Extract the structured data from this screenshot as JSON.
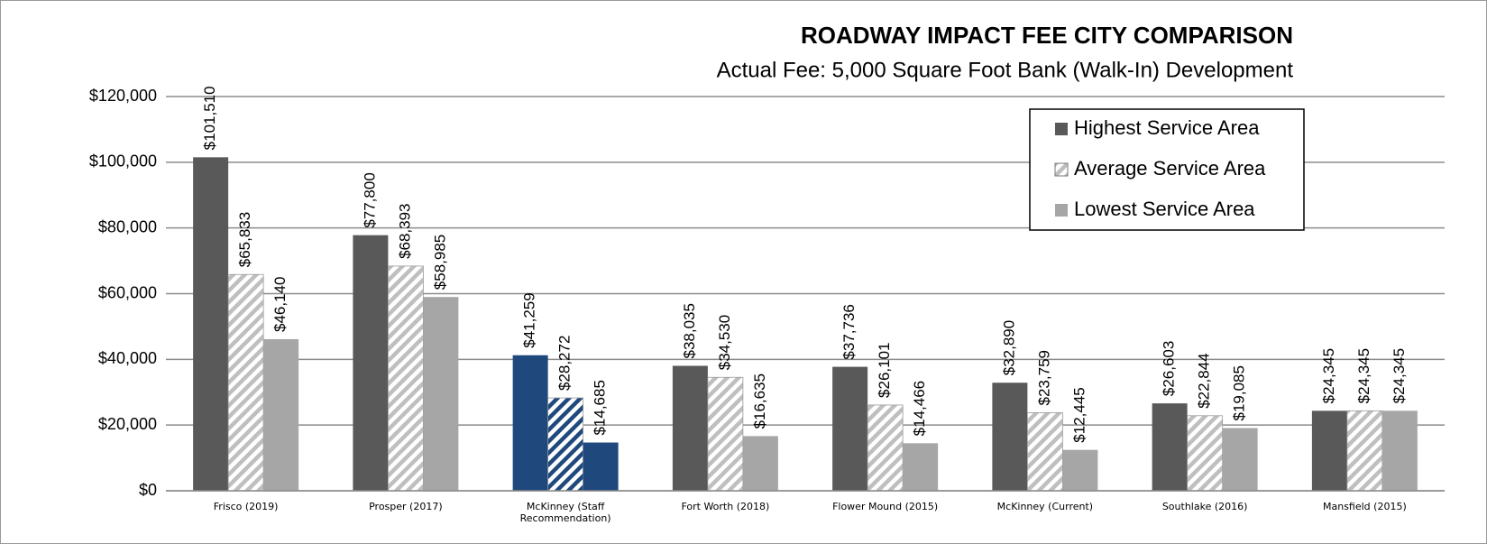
{
  "chart_data": {
    "type": "bar",
    "title": "ROADWAY IMPACT FEE CITY COMPARISON",
    "subtitle": "Actual Fee: 5,000 Square Foot Bank (Walk-In) Development",
    "categories": [
      "Frisco (2019)",
      "Prosper (2017)",
      "McKinney (Staff Recommendation)",
      "Fort Worth (2018)",
      "Flower Mound (2015)",
      "McKinney (Current)",
      "Southlake (2016)",
      "Mansfield (2015)"
    ],
    "series": [
      {
        "name": "Highest Service Area",
        "color": "#595959",
        "pattern": "solid",
        "point_colors": [
          "#595959",
          "#595959",
          "#1f497d",
          "#595959",
          "#595959",
          "#595959",
          "#595959",
          "#595959"
        ],
        "values": [
          101510,
          77800,
          41259,
          38035,
          37736,
          32890,
          26603,
          24345
        ],
        "value_labels": [
          "$101,510",
          "$77,800",
          "$41,259",
          "$38,035",
          "$37,736",
          "$32,890",
          "$26,603",
          "$24,345"
        ]
      },
      {
        "name": "Average Service Area",
        "color": "#bfbfbf",
        "pattern": "hatch",
        "point_colors": [
          "#bfbfbf",
          "#bfbfbf",
          "#1f497d",
          "#bfbfbf",
          "#bfbfbf",
          "#bfbfbf",
          "#bfbfbf",
          "#bfbfbf"
        ],
        "values": [
          65833,
          68393,
          28272,
          34530,
          26101,
          23759,
          22844,
          24345
        ],
        "value_labels": [
          "$65,833",
          "$68,393",
          "$28,272",
          "$34,530",
          "$26,101",
          "$23,759",
          "$22,844",
          "$24,345"
        ]
      },
      {
        "name": "Lowest Service Area",
        "color": "#a6a6a6",
        "pattern": "solid",
        "point_colors": [
          "#a6a6a6",
          "#a6a6a6",
          "#1f497d",
          "#a6a6a6",
          "#a6a6a6",
          "#a6a6a6",
          "#a6a6a6",
          "#a6a6a6"
        ],
        "values": [
          46140,
          58985,
          14685,
          16635,
          14466,
          12445,
          19085,
          24345
        ],
        "value_labels": [
          "$46,140",
          "$58,985",
          "$14,685",
          "$16,635",
          "$14,466",
          "$12,445",
          "$19,085",
          "$24,345"
        ]
      }
    ],
    "ylim": [
      0,
      120000
    ],
    "yticks": [
      {
        "value": 0,
        "label": "$0"
      },
      {
        "value": 20000,
        "label": "$20,000"
      },
      {
        "value": 40000,
        "label": "$40,000"
      },
      {
        "value": 60000,
        "label": "$60,000"
      },
      {
        "value": 80000,
        "label": "$80,000"
      },
      {
        "value": 100000,
        "label": "$100,000"
      },
      {
        "value": 120000,
        "label": "$120,000"
      }
    ],
    "grid": true,
    "legend": "upper right"
  }
}
